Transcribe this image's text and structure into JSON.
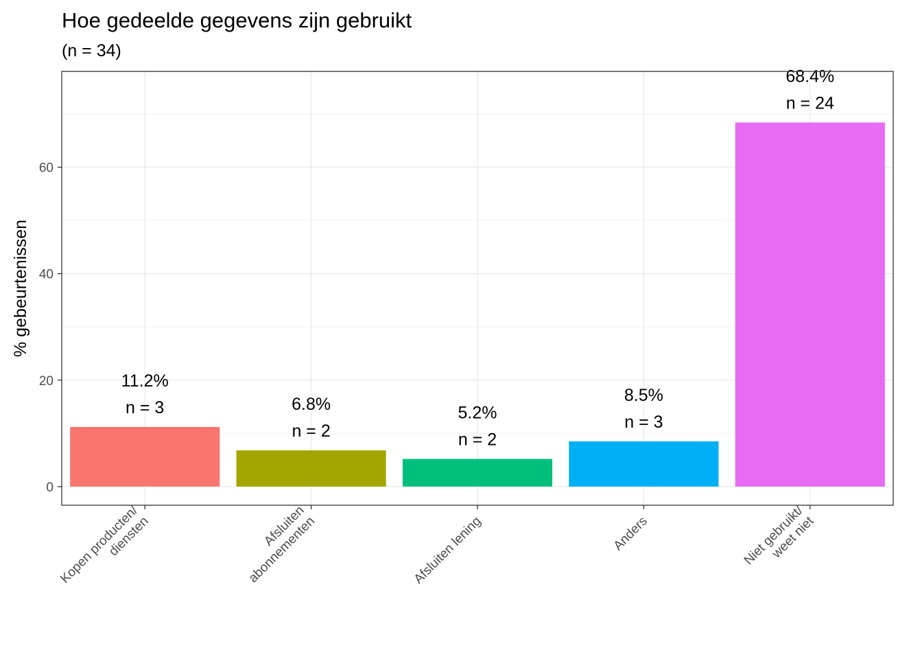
{
  "chart_data": {
    "type": "bar",
    "title": "Hoe gedeelde gegevens zijn gebruikt",
    "subtitle": "(n = 34)",
    "xlabel": "",
    "ylabel": "% gebeurtenissen",
    "ylim": [
      -3.5,
      78
    ],
    "yticks": [
      0,
      20,
      40,
      60
    ],
    "grid": true,
    "categories": [
      [
        "Kopen producten/",
        "diensten"
      ],
      [
        "Afsluiten",
        "abonnementen"
      ],
      [
        "Afsluiten lening"
      ],
      [
        "Anders"
      ],
      [
        "Niet gebruikt/",
        "weet niet"
      ]
    ],
    "values": [
      11.2,
      6.8,
      5.2,
      8.5,
      68.4
    ],
    "value_labels": [
      "11.2%",
      "6.8%",
      "5.2%",
      "8.5%",
      "68.4%"
    ],
    "count_labels": [
      "n = 3",
      "n = 2",
      "n = 2",
      "n = 3",
      "n = 24"
    ],
    "colors": [
      "#F8766D",
      "#A3A500",
      "#00BF7D",
      "#00B0F6",
      "#E76BF3"
    ]
  }
}
